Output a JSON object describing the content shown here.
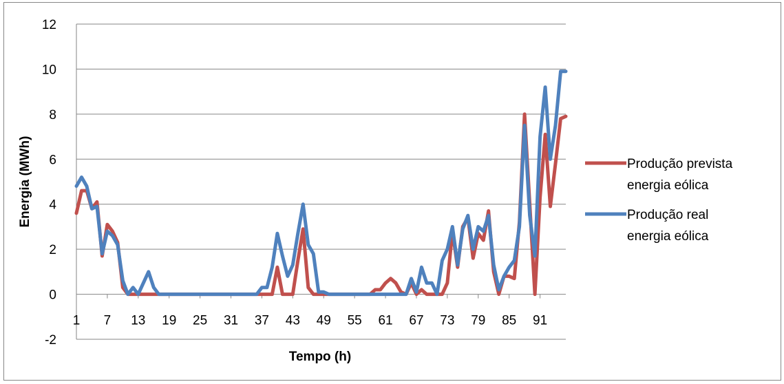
{
  "chart_data": {
    "type": "line",
    "xlabel": "Tempo (h)",
    "ylabel": "Energia (MWh)",
    "ylim": [
      -2,
      12
    ],
    "yticks": [
      -2,
      0,
      2,
      4,
      6,
      8,
      10,
      12
    ],
    "xticks": [
      1,
      7,
      13,
      19,
      25,
      31,
      37,
      43,
      49,
      55,
      61,
      67,
      73,
      79,
      85,
      91
    ],
    "x": [
      1,
      2,
      3,
      4,
      5,
      6,
      7,
      8,
      9,
      10,
      11,
      12,
      13,
      14,
      15,
      16,
      17,
      18,
      19,
      20,
      21,
      22,
      23,
      24,
      25,
      26,
      27,
      28,
      29,
      30,
      31,
      32,
      33,
      34,
      35,
      36,
      37,
      38,
      39,
      40,
      41,
      42,
      43,
      44,
      45,
      46,
      47,
      48,
      49,
      50,
      51,
      52,
      53,
      54,
      55,
      56,
      57,
      58,
      59,
      60,
      61,
      62,
      63,
      64,
      65,
      66,
      67,
      68,
      69,
      70,
      71,
      72,
      73,
      74,
      75,
      76,
      77,
      78,
      79,
      80,
      81,
      82,
      83,
      84,
      85,
      86,
      87,
      88,
      89,
      90,
      91,
      92,
      93,
      94,
      95,
      96
    ],
    "legend_position": "right",
    "grid": "horizontal",
    "series": [
      {
        "name": "Produção prevista energia eólica",
        "color": "#c0504d",
        "values": [
          3.6,
          4.6,
          4.6,
          3.8,
          4.1,
          1.7,
          3.1,
          2.8,
          2.3,
          0.3,
          0,
          0,
          0,
          0,
          0,
          0,
          0,
          0,
          0,
          0,
          0,
          0,
          0,
          0,
          0,
          0,
          0,
          0,
          0,
          0,
          0,
          0,
          0,
          0,
          0,
          0,
          0,
          0,
          0,
          1.2,
          0,
          0,
          0,
          1.5,
          2.9,
          0.3,
          0,
          0,
          0,
          0,
          0,
          0,
          0,
          0,
          0,
          0,
          0,
          0,
          0.2,
          0.2,
          0.5,
          0.7,
          0.5,
          0.1,
          0,
          0.5,
          0,
          0.2,
          0,
          0,
          0,
          0,
          0.5,
          2.8,
          1.2,
          3.0,
          3.4,
          1.6,
          2.7,
          2.4,
          3.7,
          1.0,
          0,
          0.8,
          0.8,
          0.7,
          3.2,
          8.0,
          4.0,
          0,
          4.3,
          7.1,
          3.9,
          5.8,
          7.8,
          7.9
        ]
      },
      {
        "name": "Produção real energia eólica",
        "color": "#4f81bd",
        "values": [
          4.8,
          5.2,
          4.8,
          3.8,
          3.9,
          1.8,
          2.8,
          2.6,
          2.2,
          0.6,
          0,
          0.3,
          0,
          0.5,
          1.0,
          0.3,
          0,
          0,
          0,
          0,
          0,
          0,
          0,
          0,
          0,
          0,
          0,
          0,
          0,
          0,
          0,
          0,
          0,
          0,
          0,
          0,
          0.3,
          0.3,
          1.2,
          2.7,
          1.7,
          0.8,
          1.3,
          2.7,
          4.0,
          2.2,
          1.8,
          0.1,
          0.1,
          0,
          0,
          0,
          0,
          0,
          0,
          0,
          0,
          0,
          0,
          0,
          0,
          0,
          0,
          0,
          0,
          0.7,
          0.1,
          1.2,
          0.5,
          0.5,
          0,
          1.5,
          2.0,
          3.0,
          1.3,
          2.9,
          3.5,
          2.0,
          3.0,
          2.8,
          3.5,
          1.3,
          0.2,
          0.8,
          1.2,
          1.5,
          3.0,
          7.5,
          3.5,
          1.7,
          7.0,
          9.2,
          6.0,
          7.5,
          9.9,
          9.9
        ]
      }
    ]
  }
}
